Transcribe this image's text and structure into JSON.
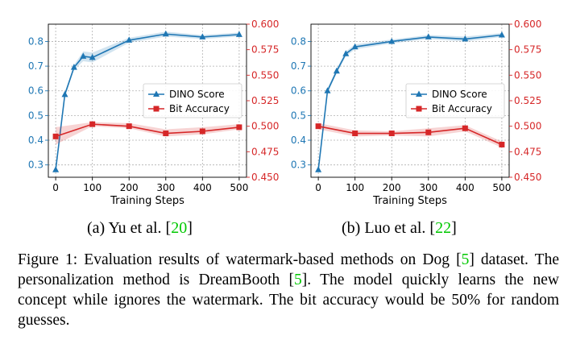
{
  "chart_data": [
    {
      "type": "line",
      "x": [
        0,
        25,
        50,
        75,
        100,
        200,
        300,
        400,
        500
      ],
      "xlabel": "Training Steps",
      "xticks": [
        0,
        100,
        200,
        300,
        400,
        500
      ],
      "xlim": [
        -20,
        520
      ],
      "grid": true,
      "legend_position": "center-right",
      "series": [
        {
          "name": "DINO Score",
          "axis": "left",
          "marker": "triangle",
          "color": "#1f77b4",
          "values": [
            0.28,
            0.585,
            0.695,
            0.74,
            0.735,
            0.805,
            0.83,
            0.818,
            0.828
          ],
          "band_low": [
            0.27,
            0.575,
            0.685,
            0.72,
            0.715,
            0.795,
            0.82,
            0.81,
            0.82
          ],
          "band_high": [
            0.29,
            0.595,
            0.705,
            0.76,
            0.755,
            0.815,
            0.84,
            0.826,
            0.836
          ]
        },
        {
          "name": "Bit Accuracy",
          "axis": "right",
          "marker": "square",
          "color": "#d62728",
          "x": [
            0,
            100,
            200,
            300,
            400,
            500
          ],
          "values": [
            0.49,
            0.502,
            0.5,
            0.493,
            0.495,
            0.499
          ],
          "band_low": [
            0.482,
            0.5,
            0.498,
            0.49,
            0.492,
            0.497
          ],
          "band_high": [
            0.499,
            0.504,
            0.503,
            0.497,
            0.499,
            0.502
          ]
        }
      ],
      "ylim_left": [
        0.25,
        0.87
      ],
      "yticks_left": [
        "0.3",
        "0.4",
        "0.5",
        "0.6",
        "0.7",
        "0.8"
      ],
      "ylim_right": [
        0.45,
        0.6
      ],
      "yticks_right": [
        "0.450",
        "0.475",
        "0.500",
        "0.525",
        "0.550",
        "0.575",
        "0.600"
      ]
    },
    {
      "type": "line",
      "x": [
        0,
        25,
        50,
        75,
        100,
        200,
        300,
        400,
        500
      ],
      "xlabel": "Training Steps",
      "xticks": [
        0,
        100,
        200,
        300,
        400,
        500
      ],
      "xlim": [
        -20,
        520
      ],
      "grid": true,
      "legend_position": "center-right",
      "series": [
        {
          "name": "DINO Score",
          "axis": "left",
          "marker": "triangle",
          "color": "#1f77b4",
          "values": [
            0.28,
            0.6,
            0.68,
            0.75,
            0.778,
            0.8,
            0.818,
            0.81,
            0.826
          ],
          "band_low": [
            0.27,
            0.59,
            0.67,
            0.74,
            0.768,
            0.792,
            0.81,
            0.8,
            0.818
          ],
          "band_high": [
            0.29,
            0.61,
            0.69,
            0.76,
            0.788,
            0.808,
            0.826,
            0.82,
            0.834
          ]
        },
        {
          "name": "Bit Accuracy",
          "axis": "right",
          "marker": "square",
          "color": "#d62728",
          "x": [
            0,
            100,
            200,
            300,
            400,
            500
          ],
          "values": [
            0.5,
            0.493,
            0.493,
            0.494,
            0.498,
            0.482
          ],
          "band_low": [
            0.497,
            0.49,
            0.491,
            0.49,
            0.495,
            0.479
          ],
          "band_high": [
            0.503,
            0.496,
            0.495,
            0.498,
            0.501,
            0.485
          ]
        }
      ],
      "ylim_left": [
        0.25,
        0.87
      ],
      "yticks_left": [
        "0.3",
        "0.4",
        "0.5",
        "0.6",
        "0.7",
        "0.8"
      ],
      "ylim_right": [
        0.45,
        0.6
      ],
      "yticks_right": [
        "0.450",
        "0.475",
        "0.500",
        "0.525",
        "0.550",
        "0.575",
        "0.600"
      ]
    }
  ],
  "subcaptions": {
    "a": {
      "prefix": "(a) Yu et al. [",
      "ref": "20",
      "suffix": "]"
    },
    "b": {
      "prefix": "(b) Luo et al. [",
      "ref": "22",
      "suffix": "]"
    }
  },
  "caption": {
    "t1": "Figure 1: Evaluation results of watermark-based methods on Dog ",
    "t2": "[",
    "ref1": "5",
    "t3": "] dataset. The personalization method is DreamBooth [",
    "ref2": "5",
    "t4": "]. The model quickly learns the new concept while ignores the watermark. The bit accuracy would be 50% for random guesses."
  }
}
